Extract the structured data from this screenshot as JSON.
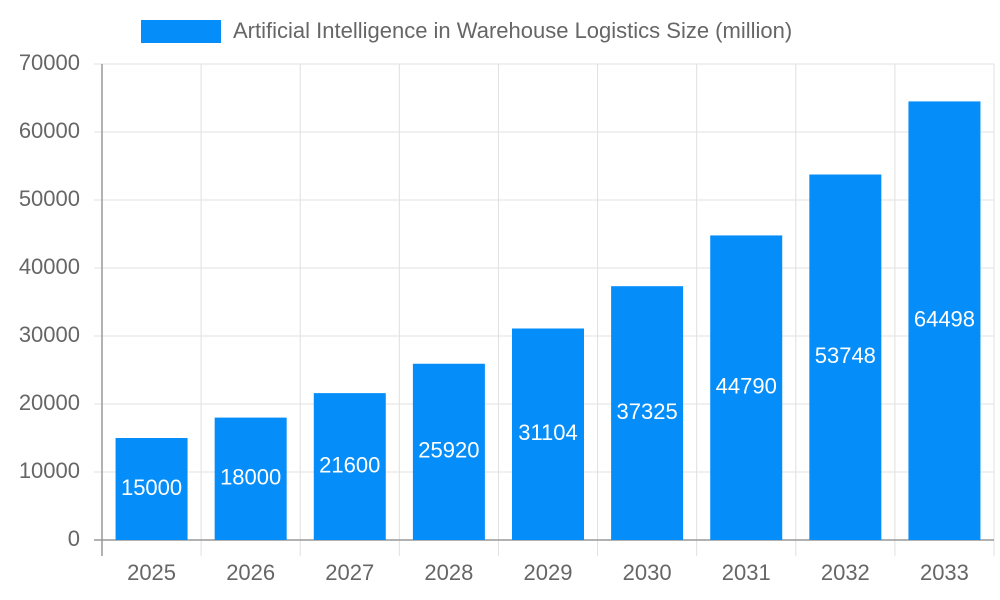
{
  "chart_data": {
    "type": "bar",
    "categories": [
      "2025",
      "2026",
      "2027",
      "2028",
      "2029",
      "2030",
      "2031",
      "2032",
      "2033"
    ],
    "series": [
      {
        "name": "Artificial Intelligence in Warehouse Logistics Size (million)",
        "color": "#058df9",
        "values": [
          15000,
          18000,
          21600,
          25920,
          31104,
          37325,
          44790,
          53748,
          64498
        ]
      }
    ],
    "ylim": [
      0,
      70000
    ],
    "yticks": [
      0,
      10000,
      20000,
      30000,
      40000,
      50000,
      60000,
      70000
    ],
    "grid": true,
    "legend": "top"
  }
}
